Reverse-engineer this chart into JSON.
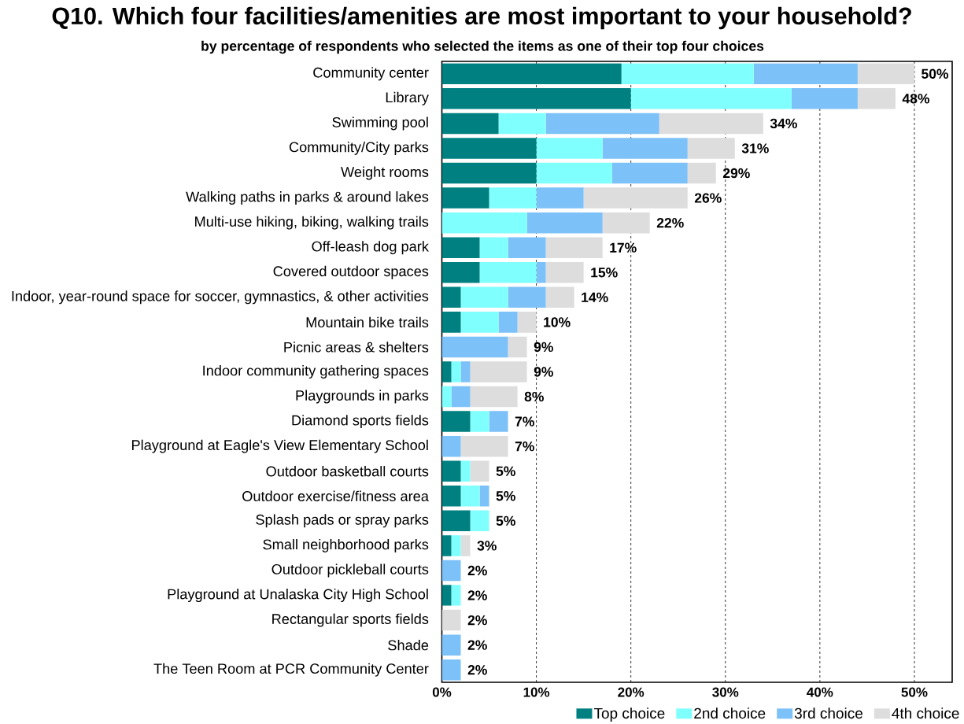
{
  "chart_data": {
    "type": "bar",
    "orientation": "horizontal",
    "stacked": true,
    "title": "Q10.  Which four facilities/amenities are most important to your household?",
    "subtitle": "by percentage of respondents who selected the items as one of their top four choices",
    "categories": [
      "Community center",
      "Library",
      "Swimming pool",
      "Community/City parks",
      "Weight rooms",
      "Walking paths in parks & around lakes",
      "Multi-use hiking, biking, walking trails",
      "Off-leash dog park",
      "Covered outdoor spaces",
      "Indoor, year-round space for soccer, gymnastics, & other activities",
      "Mountain bike trails",
      "Picnic areas & shelters",
      "Indoor community gathering spaces",
      "Playgrounds in parks",
      "Diamond sports fields",
      "Playground at Eagle's View Elementary School",
      "Outdoor basketball courts",
      "Outdoor exercise/fitness area",
      "Splash pads or spray parks",
      "Small neighborhood parks",
      "Outdoor pickleball courts",
      "Playground at Unalaska City High School",
      "Rectangular sports fields",
      "Shade",
      "The Teen Room at PCR Community Center"
    ],
    "series": [
      {
        "name": "Top choice",
        "color": "#008080",
        "values": [
          19,
          20,
          6,
          10,
          10,
          5,
          0,
          4,
          4,
          2,
          2,
          0,
          1,
          0,
          3,
          0,
          2,
          2,
          3,
          1,
          0,
          1,
          0,
          0,
          0
        ]
      },
      {
        "name": "2nd choice",
        "color": "#80ffff",
        "values": [
          14,
          17,
          5,
          7,
          8,
          5,
          9,
          3,
          6,
          5,
          4,
          0,
          1,
          1,
          2,
          0,
          1,
          2,
          2,
          1,
          0,
          1,
          0,
          0,
          0
        ]
      },
      {
        "name": "3rd choice",
        "color": "#7dc1f9",
        "values": [
          11,
          7,
          12,
          9,
          8,
          5,
          8,
          4,
          1,
          4,
          2,
          7,
          1,
          2,
          2,
          2,
          0,
          1,
          0,
          0,
          2,
          0,
          0,
          2,
          2
        ]
      },
      {
        "name": "4th choice",
        "color": "#dddddd",
        "values": [
          6,
          4,
          11,
          5,
          3,
          11,
          5,
          6,
          4,
          3,
          2,
          2,
          6,
          5,
          0,
          5,
          2,
          0,
          0,
          1,
          0,
          0,
          2,
          0,
          0
        ]
      }
    ],
    "totals": [
      "50%",
      "48%",
      "34%",
      "31%",
      "29%",
      "26%",
      "22%",
      "17%",
      "15%",
      "14%",
      "10%",
      "9%",
      "9%",
      "8%",
      "7%",
      "7%",
      "5%",
      "5%",
      "5%",
      "3%",
      "2%",
      "2%",
      "2%",
      "2%",
      "2%"
    ],
    "xlim": [
      0,
      54
    ],
    "xticks": [
      {
        "value": 0,
        "label": "0%"
      },
      {
        "value": 10,
        "label": "10%"
      },
      {
        "value": 20,
        "label": "20%"
      },
      {
        "value": 30,
        "label": "30%"
      },
      {
        "value": 40,
        "label": "40%"
      },
      {
        "value": 50,
        "label": "50%"
      }
    ],
    "grid": "x",
    "legend": "bottom"
  }
}
